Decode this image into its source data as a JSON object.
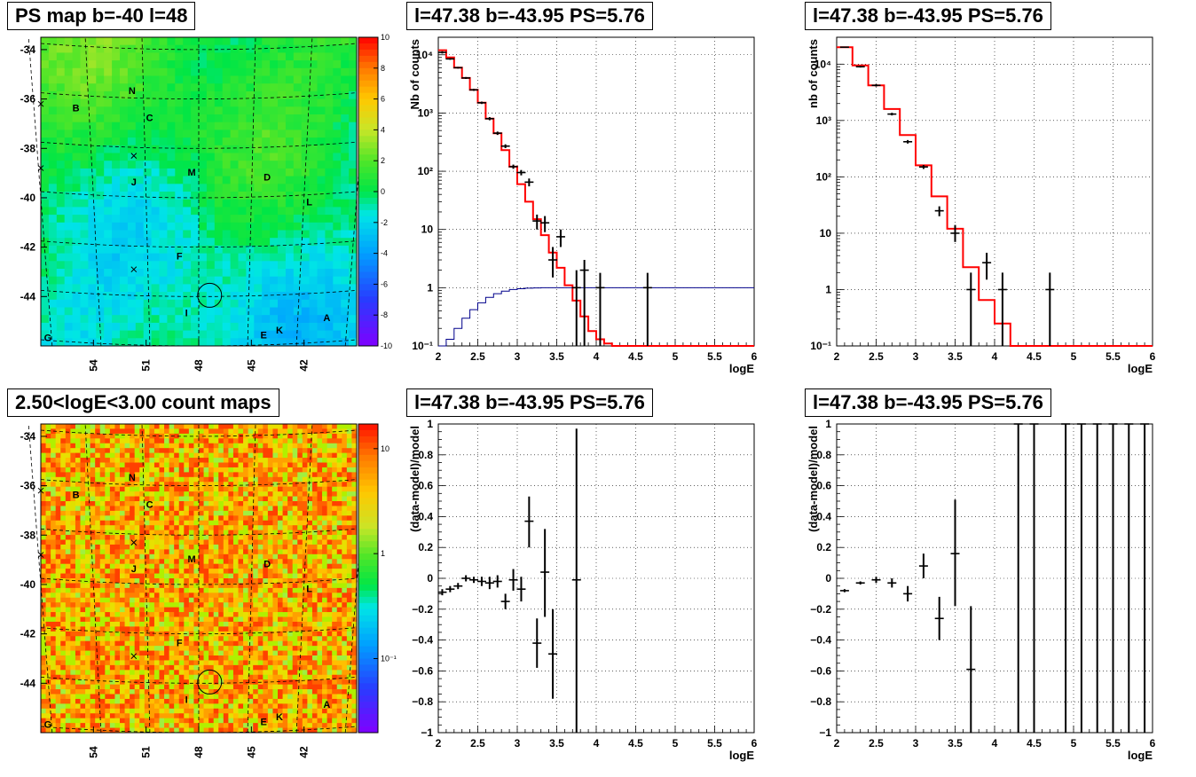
{
  "panels": {
    "ps_map": {
      "title": "PS map b=-40 l=48",
      "y_ticks": [
        "-34",
        "-36",
        "-38",
        "-40",
        "-42",
        "-44"
      ],
      "x_ticks": [
        "54",
        "51",
        "48",
        "45",
        "42"
      ],
      "colorbar_ticks": [
        "10",
        "8",
        "6",
        "4",
        "2",
        "0",
        "-2",
        "-4",
        "-6",
        "-8",
        "-10"
      ],
      "source_labels": [
        "N",
        "B",
        "C",
        "J",
        "M",
        "D",
        "L",
        "F",
        "I",
        "E",
        "K",
        "A",
        "G"
      ]
    },
    "count_map": {
      "title": "2.50<logE<3.00 count maps",
      "y_ticks": [
        "-34",
        "-36",
        "-38",
        "-40",
        "-42",
        "-44"
      ],
      "x_ticks": [
        "54",
        "51",
        "48",
        "45",
        "42"
      ],
      "colorbar_ticks": [
        "10",
        "1",
        "10⁻¹"
      ],
      "source_labels": [
        "N",
        "B",
        "C",
        "J",
        "M",
        "D",
        "L",
        "F",
        "I",
        "E",
        "K",
        "A",
        "G"
      ]
    },
    "spectrum_1": {
      "title": "l=47.38 b=-43.95 PS=5.76"
    },
    "spectrum_2": {
      "title": "l=47.38 b=-43.95 PS=5.76"
    },
    "residual_1": {
      "title": "l=47.38 b=-43.95 PS=5.76"
    },
    "residual_2": {
      "title": "l=47.38 b=-43.95 PS=5.76"
    }
  },
  "colors": {
    "model_line": "#ff0000",
    "exposure_line": "#00008b",
    "data_points": "#000000",
    "colorbar_top": "#ff0000",
    "colorbar_bottom": "#8000ff"
  },
  "chart_data": [
    {
      "type": "heatmap",
      "title": "PS map b=-40 l=48",
      "xlabel": "",
      "ylabel": "",
      "xlim": [
        57,
        39
      ],
      "ylim": [
        -46,
        -33.5
      ],
      "x_ticks": [
        54,
        51,
        48,
        45,
        42
      ],
      "y_ticks": [
        -34,
        -36,
        -38,
        -40,
        -42,
        -44
      ],
      "zlim": [
        -10,
        10
      ],
      "grid": true,
      "sources": [
        {
          "label": "N",
          "l": 51.8,
          "b": -35.8
        },
        {
          "label": "B",
          "l": 55.0,
          "b": -36.5
        },
        {
          "label": "C",
          "l": 50.8,
          "b": -36.9
        },
        {
          "label": "J",
          "l": 51.7,
          "b": -39.5
        },
        {
          "label": "M",
          "l": 48.4,
          "b": -39.1
        },
        {
          "label": "D",
          "l": 44.1,
          "b": -39.3
        },
        {
          "label": "L",
          "l": 41.7,
          "b": -40.3
        },
        {
          "label": "F",
          "l": 49.1,
          "b": -42.5
        },
        {
          "label": "I",
          "l": 48.7,
          "b": -44.8
        },
        {
          "label": "E",
          "l": 44.3,
          "b": -45.7
        },
        {
          "label": "K",
          "l": 43.4,
          "b": -45.5
        },
        {
          "label": "A",
          "l": 40.7,
          "b": -45.0
        },
        {
          "label": "G",
          "l": 56.6,
          "b": -45.8
        }
      ]
    },
    {
      "type": "heatmap",
      "title": "2.50<logE<3.00 count maps",
      "xlabel": "",
      "ylabel": "",
      "xlim": [
        57,
        39
      ],
      "ylim": [
        -46,
        -33.5
      ],
      "x_ticks": [
        54,
        51,
        48,
        45,
        42
      ],
      "y_ticks": [
        -34,
        -36,
        -38,
        -40,
        -42,
        -44
      ],
      "z_scale": "log",
      "colorbar_ticks": [
        "10",
        "1",
        "10⁻¹"
      ],
      "grid": true
    },
    {
      "type": "line",
      "title": "l=47.38 b=-43.95 PS=5.76",
      "xlabel": "logE",
      "ylabel": "Nb of counts",
      "xlim": [
        2,
        6
      ],
      "ylim": [
        0.1,
        20000
      ],
      "y_scale": "log",
      "x_ticks": [
        "2",
        "2.5",
        "3",
        "3.5",
        "4",
        "4.5",
        "5",
        "5.5",
        "6"
      ],
      "y_ticks": [
        "10⁻¹",
        "1",
        "10",
        "10²",
        "10³",
        "10⁴"
      ],
      "grid": true,
      "series": [
        {
          "style": "step",
          "color": "#ff0000",
          "x": [
            2.0,
            2.1,
            2.2,
            2.3,
            2.4,
            2.5,
            2.6,
            2.7,
            2.8,
            2.9,
            3.0,
            3.1,
            3.2,
            3.3,
            3.4,
            3.5,
            3.6,
            3.7,
            3.8,
            3.9,
            4.0,
            4.1,
            4.2,
            6.0
          ],
          "y": [
            12000,
            9000,
            6000,
            4000,
            2500,
            1500,
            800,
            450,
            230,
            120,
            60,
            30,
            15,
            8,
            4,
            2.2,
            1.1,
            0.6,
            0.32,
            0.18,
            0.13,
            0.11,
            0.1,
            0.1
          ]
        },
        {
          "style": "step",
          "color": "#00008b",
          "x": [
            2.0,
            2.1,
            2.2,
            2.3,
            2.4,
            2.5,
            2.6,
            2.7,
            2.8,
            2.9,
            3.0,
            3.1,
            3.2,
            3.3,
            3.5,
            6.0
          ],
          "y": [
            0.1,
            0.13,
            0.2,
            0.3,
            0.42,
            0.55,
            0.68,
            0.79,
            0.87,
            0.93,
            0.96,
            0.98,
            0.99,
            1.0,
            1.0,
            1.0
          ]
        },
        {
          "style": "errorbar",
          "color": "#000000",
          "points": [
            {
              "x": 2.05,
              "y": 11000,
              "ylo": 10500,
              "yhi": 11500
            },
            {
              "x": 2.15,
              "y": 8500,
              "ylo": 8200,
              "yhi": 8800
            },
            {
              "x": 2.25,
              "y": 6000,
              "ylo": 5800,
              "yhi": 6200
            },
            {
              "x": 2.35,
              "y": 4000,
              "ylo": 3850,
              "yhi": 4150
            },
            {
              "x": 2.45,
              "y": 2500,
              "ylo": 2400,
              "yhi": 2600
            },
            {
              "x": 2.55,
              "y": 1500,
              "ylo": 1430,
              "yhi": 1570
            },
            {
              "x": 2.65,
              "y": 800,
              "ylo": 750,
              "yhi": 850
            },
            {
              "x": 2.75,
              "y": 450,
              "ylo": 420,
              "yhi": 480
            },
            {
              "x": 2.85,
              "y": 270,
              "ylo": 250,
              "yhi": 290
            },
            {
              "x": 2.95,
              "y": 120,
              "ylo": 110,
              "yhi": 130
            },
            {
              "x": 3.05,
              "y": 95,
              "ylo": 85,
              "yhi": 105
            },
            {
              "x": 3.15,
              "y": 65,
              "ylo": 55,
              "yhi": 75
            },
            {
              "x": 3.25,
              "y": 14,
              "ylo": 10,
              "yhi": 18
            },
            {
              "x": 3.35,
              "y": 13,
              "ylo": 9,
              "yhi": 17
            },
            {
              "x": 3.45,
              "y": 3,
              "ylo": 1.5,
              "yhi": 5
            },
            {
              "x": 3.55,
              "y": 7.5,
              "ylo": 5,
              "yhi": 10
            },
            {
              "x": 3.75,
              "y": 1,
              "ylo": 0.1,
              "yhi": 2
            },
            {
              "x": 3.85,
              "y": 2,
              "ylo": 0.1,
              "yhi": 3
            },
            {
              "x": 4.05,
              "y": 1,
              "ylo": 0.1,
              "yhi": 1.8
            },
            {
              "x": 4.65,
              "y": 1,
              "ylo": 0.1,
              "yhi": 1.8
            }
          ]
        }
      ]
    },
    {
      "type": "line",
      "title": "l=47.38 b=-43.95 PS=5.76",
      "xlabel": "logE",
      "ylabel": "nb of counts",
      "xlim": [
        2,
        6
      ],
      "ylim": [
        0.1,
        30000
      ],
      "y_scale": "log",
      "x_ticks": [
        "2",
        "2.5",
        "3",
        "3.5",
        "4",
        "4.5",
        "5",
        "5.5",
        "6"
      ],
      "y_ticks": [
        "10⁻¹",
        "1",
        "10",
        "10²",
        "10³",
        "10⁴"
      ],
      "grid": true,
      "series": [
        {
          "style": "step",
          "color": "#ff0000",
          "x": [
            2.0,
            2.2,
            2.4,
            2.6,
            2.8,
            3.0,
            3.2,
            3.4,
            3.6,
            3.8,
            4.0,
            4.2,
            6.0
          ],
          "y": [
            20000,
            9500,
            4200,
            1600,
            550,
            160,
            45,
            12,
            2.5,
            0.65,
            0.25,
            0.1,
            0.1
          ]
        },
        {
          "style": "errorbar",
          "color": "#000000",
          "points": [
            {
              "x": 2.1,
              "y": 20000,
              "ylo": 19500,
              "yhi": 20500
            },
            {
              "x": 2.3,
              "y": 9000,
              "ylo": 8700,
              "yhi": 9300
            },
            {
              "x": 2.5,
              "y": 4200,
              "ylo": 4000,
              "yhi": 4400
            },
            {
              "x": 2.7,
              "y": 1300,
              "ylo": 1230,
              "yhi": 1370
            },
            {
              "x": 2.9,
              "y": 420,
              "ylo": 390,
              "yhi": 450
            },
            {
              "x": 3.1,
              "y": 150,
              "ylo": 138,
              "yhi": 162
            },
            {
              "x": 3.3,
              "y": 25,
              "ylo": 20,
              "yhi": 30
            },
            {
              "x": 3.5,
              "y": 10,
              "ylo": 7,
              "yhi": 14
            },
            {
              "x": 3.7,
              "y": 1,
              "ylo": 0.1,
              "yhi": 2
            },
            {
              "x": 3.9,
              "y": 3,
              "ylo": 1.5,
              "yhi": 4.5
            },
            {
              "x": 4.1,
              "y": 1,
              "ylo": 0.1,
              "yhi": 2
            },
            {
              "x": 4.7,
              "y": 1,
              "ylo": 0.1,
              "yhi": 2
            }
          ]
        }
      ]
    },
    {
      "type": "scatter",
      "title": "l=47.38 b=-43.95 PS=5.76",
      "xlabel": "logE",
      "ylabel": "(data-model)/model",
      "xlim": [
        2,
        6
      ],
      "ylim": [
        -1,
        1
      ],
      "x_ticks": [
        "2",
        "2.5",
        "3",
        "3.5",
        "4",
        "4.5",
        "5",
        "5.5",
        "6"
      ],
      "y_ticks": [
        "−1",
        "−0.8",
        "−0.6",
        "−0.4",
        "−0.2",
        "0",
        "0.2",
        "0.4",
        "0.6",
        "0.8",
        "1"
      ],
      "grid": true,
      "series": [
        {
          "style": "errorbar",
          "color": "#000000",
          "points": [
            {
              "x": 2.05,
              "y": -0.09,
              "ylo": -0.11,
              "yhi": -0.07
            },
            {
              "x": 2.15,
              "y": -0.07,
              "ylo": -0.09,
              "yhi": -0.05
            },
            {
              "x": 2.25,
              "y": -0.05,
              "ylo": -0.07,
              "yhi": -0.03
            },
            {
              "x": 2.35,
              "y": 0.0,
              "ylo": -0.02,
              "yhi": 0.02
            },
            {
              "x": 2.45,
              "y": -0.01,
              "ylo": -0.03,
              "yhi": 0.01
            },
            {
              "x": 2.55,
              "y": -0.02,
              "ylo": -0.05,
              "yhi": 0.01
            },
            {
              "x": 2.65,
              "y": -0.03,
              "ylo": -0.07,
              "yhi": 0.01
            },
            {
              "x": 2.75,
              "y": -0.02,
              "ylo": -0.06,
              "yhi": 0.02
            },
            {
              "x": 2.85,
              "y": -0.15,
              "ylo": -0.2,
              "yhi": -0.1
            },
            {
              "x": 2.95,
              "y": -0.01,
              "ylo": -0.08,
              "yhi": 0.06
            },
            {
              "x": 3.05,
              "y": -0.07,
              "ylo": -0.15,
              "yhi": 0.01
            },
            {
              "x": 3.15,
              "y": 0.37,
              "ylo": 0.2,
              "yhi": 0.53
            },
            {
              "x": 3.25,
              "y": -0.42,
              "ylo": -0.58,
              "yhi": -0.26
            },
            {
              "x": 3.35,
              "y": 0.04,
              "ylo": -0.25,
              "yhi": 0.32
            },
            {
              "x": 3.45,
              "y": -0.49,
              "ylo": -0.78,
              "yhi": -0.2
            },
            {
              "x": 3.75,
              "y": -0.01,
              "ylo": -1.0,
              "yhi": 0.97
            }
          ]
        }
      ]
    },
    {
      "type": "scatter",
      "title": "l=47.38 b=-43.95 PS=5.76",
      "xlabel": "logE",
      "ylabel": "(data-model)/model",
      "xlim": [
        2,
        6
      ],
      "ylim": [
        -1,
        1
      ],
      "x_ticks": [
        "2",
        "2.5",
        "3",
        "3.5",
        "4",
        "4.5",
        "5",
        "5.5",
        "6"
      ],
      "y_ticks": [
        "−1",
        "−0.8",
        "−0.6",
        "−0.4",
        "−0.2",
        "0",
        "0.2",
        "0.4",
        "0.6",
        "0.8",
        "1"
      ],
      "grid": true,
      "series": [
        {
          "style": "errorbar",
          "color": "#000000",
          "points": [
            {
              "x": 2.1,
              "y": -0.08,
              "ylo": -0.09,
              "yhi": -0.07
            },
            {
              "x": 2.3,
              "y": -0.03,
              "ylo": -0.04,
              "yhi": -0.02
            },
            {
              "x": 2.5,
              "y": -0.01,
              "ylo": -0.03,
              "yhi": 0.01
            },
            {
              "x": 2.7,
              "y": -0.03,
              "ylo": -0.06,
              "yhi": 0.0
            },
            {
              "x": 2.9,
              "y": -0.1,
              "ylo": -0.15,
              "yhi": -0.05
            },
            {
              "x": 3.1,
              "y": 0.08,
              "ylo": 0.0,
              "yhi": 0.16
            },
            {
              "x": 3.3,
              "y": -0.26,
              "ylo": -0.4,
              "yhi": -0.12
            },
            {
              "x": 3.5,
              "y": 0.16,
              "ylo": -0.18,
              "yhi": 0.51
            },
            {
              "x": 3.7,
              "y": -0.59,
              "ylo": -1.0,
              "yhi": -0.18
            },
            {
              "x": 4.3,
              "y": 1.0,
              "ylo": -1.0,
              "yhi": 1.0
            },
            {
              "x": 4.5,
              "y": 1.0,
              "ylo": -1.0,
              "yhi": 1.0
            },
            {
              "x": 4.9,
              "y": 1.0,
              "ylo": -1.0,
              "yhi": 1.0
            },
            {
              "x": 5.1,
              "y": 1.0,
              "ylo": -1.0,
              "yhi": 1.0
            },
            {
              "x": 5.3,
              "y": 1.0,
              "ylo": -1.0,
              "yhi": 1.0
            },
            {
              "x": 5.5,
              "y": 1.0,
              "ylo": -1.0,
              "yhi": 1.0
            },
            {
              "x": 5.7,
              "y": 1.0,
              "ylo": -1.0,
              "yhi": 1.0
            },
            {
              "x": 5.9,
              "y": 1.0,
              "ylo": -1.0,
              "yhi": 1.0
            }
          ]
        }
      ]
    }
  ]
}
